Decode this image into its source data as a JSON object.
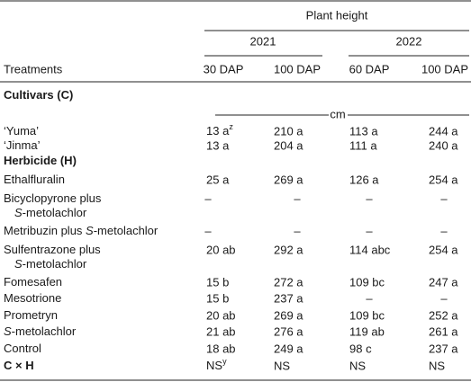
{
  "header": {
    "group": "Plant height",
    "years": [
      "2021",
      "2022"
    ],
    "stub": "Treatments",
    "columns": [
      "30 DAP",
      "100 DAP",
      "60 DAP",
      "100 DAP"
    ],
    "unit": "cm"
  },
  "rows": [
    {
      "bold": true,
      "label": [
        [
          "Cultivars (C)"
        ]
      ]
    },
    {
      "label": [
        [
          "‘Yuma’"
        ]
      ],
      "values": [
        {
          "text": "13 a",
          "sup": "z"
        },
        "210 a",
        "113 a",
        "244 a"
      ]
    },
    {
      "label": [
        [
          "‘Jinma’"
        ]
      ],
      "values": [
        "13 a",
        "204 a",
        "111 a",
        "240 a"
      ]
    },
    {
      "bold": true,
      "label": [
        [
          "Herbicide (H)"
        ]
      ]
    },
    {
      "label": [
        [
          "Ethalfluralin"
        ]
      ],
      "values": [
        "25 a",
        "269 a",
        "126 a",
        "254 a"
      ]
    },
    {
      "label": [
        [
          "Bicyclopyrone plus"
        ],
        [
          {
            "text": "S",
            "italic": true
          },
          "-metolachlor"
        ]
      ],
      "values": [
        "–",
        "–",
        "–",
        "–"
      ]
    },
    {
      "label": [
        [
          "Metribuzin plus ",
          {
            "text": "S",
            "italic": true
          },
          "-metolachlor"
        ]
      ],
      "values": [
        "–",
        "–",
        "–",
        "–"
      ]
    },
    {
      "label": [
        [
          "Sulfentrazone plus"
        ],
        [
          {
            "text": "S",
            "italic": true
          },
          "-metolachlor"
        ]
      ],
      "values": [
        "20 ab",
        "292 a",
        "114 abc",
        "254 a"
      ]
    },
    {
      "label": [
        [
          "Fomesafen"
        ]
      ],
      "values": [
        "15 b",
        "272 a",
        "109 bc",
        "247 a"
      ]
    },
    {
      "label": [
        [
          "Mesotrione"
        ]
      ],
      "values": [
        "15 b",
        "237 a",
        "–",
        "–"
      ]
    },
    {
      "label": [
        [
          "Prometryn"
        ]
      ],
      "values": [
        "20 ab",
        "269 a",
        "109 bc",
        "252 a"
      ]
    },
    {
      "label": [
        [
          {
            "text": "S",
            "italic": true
          },
          "-metolachlor"
        ]
      ],
      "values": [
        "21 ab",
        "276 a",
        "119 ab",
        "261 a"
      ]
    },
    {
      "label": [
        [
          "Control"
        ]
      ],
      "values": [
        "18 ab",
        "249 a",
        "98 c",
        "237 a"
      ]
    },
    {
      "bold": true,
      "label": [
        [
          "C × H"
        ]
      ],
      "values": [
        {
          "text": "NS",
          "sup": "y"
        },
        "NS",
        "NS",
        "NS"
      ]
    }
  ]
}
